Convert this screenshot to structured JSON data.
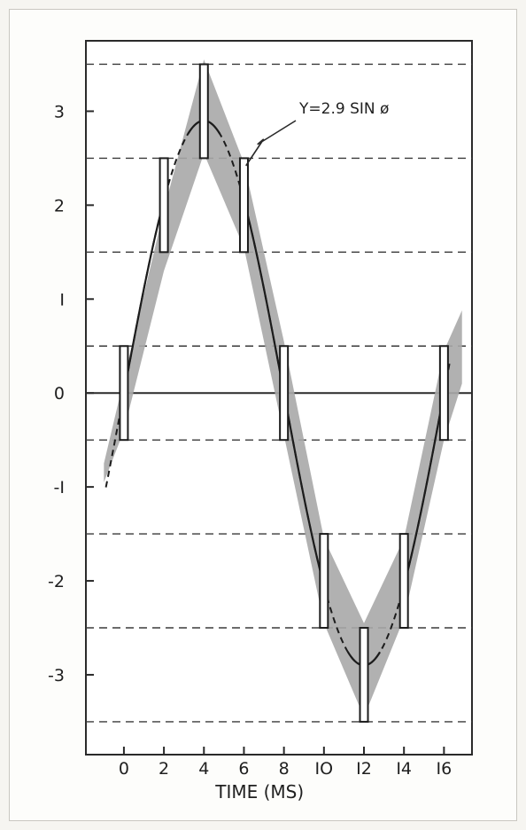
{
  "chart_data": {
    "type": "line",
    "title": "",
    "xlabel": "TIME (MS)",
    "ylabel": "",
    "xlim": [
      -1.9,
      17.4
    ],
    "ylim": [
      -3.85,
      3.75
    ],
    "x_ticks": [
      0,
      2,
      4,
      6,
      8,
      10,
      12,
      14,
      16
    ],
    "x_tick_labels": [
      "0",
      "2",
      "4",
      "6",
      "8",
      "IO",
      "I2",
      "I4",
      "I6"
    ],
    "y_ticks": [
      3,
      2,
      1,
      0,
      -1,
      -2,
      -3
    ],
    "y_tick_labels": [
      "3",
      "2",
      "I",
      "0",
      "-I",
      "-2",
      "-3"
    ],
    "dashed_reference_lines": [
      3.5,
      2.5,
      1.5,
      0.5,
      -0.5,
      -1.5,
      -2.5,
      -3.5
    ],
    "zero_line": 0,
    "grid": false,
    "annotation": {
      "text": "Y=2.9 SIN ø",
      "points_to": {
        "x": 6.1,
        "y": 2.42
      }
    },
    "series": [
      {
        "name": "",
        "style": "band",
        "x": [
          -1.0,
          0,
          2,
          4,
          6,
          8,
          10,
          12,
          14,
          16,
          16.9
        ],
        "lower": [
          -0.95,
          -0.4,
          1.3,
          2.55,
          1.55,
          -0.45,
          -2.45,
          -3.45,
          -2.4,
          -0.5,
          0.1
        ],
        "upper": [
          -0.75,
          0.15,
          1.95,
          3.55,
          2.45,
          0.55,
          -1.55,
          -2.45,
          -1.55,
          0.45,
          0.88
        ]
      },
      {
        "name": "",
        "style": "bars",
        "x": [
          0,
          2,
          4,
          6,
          8,
          10,
          12,
          14,
          16
        ],
        "lower": [
          -0.5,
          1.5,
          2.5,
          1.5,
          -0.5,
          -2.5,
          -3.5,
          -2.5,
          -0.5
        ],
        "upper": [
          0.5,
          2.5,
          3.5,
          2.5,
          0.5,
          -1.5,
          -2.5,
          -1.5,
          0.5
        ]
      },
      {
        "name": "Y=2.9 SIN ø",
        "style": "sine",
        "amplitude": 2.9,
        "period": 16,
        "x_range": [
          -0.9,
          16.3
        ],
        "solid_segments": [
          [
            0,
            2
          ],
          [
            3.2,
            4.8
          ],
          [
            6,
            8
          ],
          [
            8,
            10
          ],
          [
            11.2,
            12.8
          ],
          [
            14,
            16
          ]
        ]
      }
    ]
  }
}
